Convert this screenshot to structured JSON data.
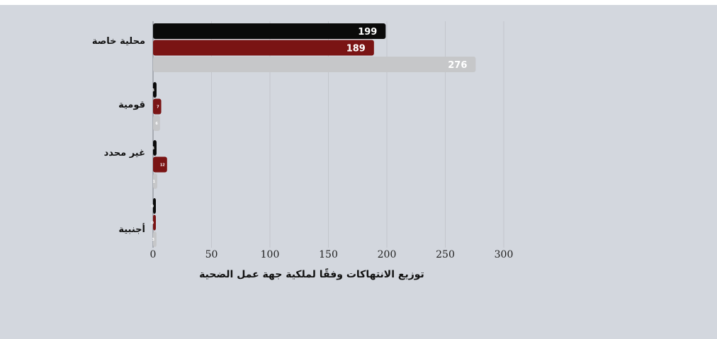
{
  "chart_data": {
    "type": "bar",
    "orientation": "horizontal",
    "categories": [
      "محلية خاصة",
      "قومية",
      "غير محدد",
      "أجنبية"
    ],
    "series": [
      {
        "values": [
          199,
          3,
          3,
          0
        ],
        "color": "#0a0a0a"
      },
      {
        "values": [
          189,
          7,
          12,
          0
        ],
        "color": "#7a1414"
      },
      {
        "values": [
          276,
          6,
          1,
          3
        ],
        "color": "#c6c7c9"
      }
    ],
    "xlim": [
      0,
      300
    ],
    "xticks": [
      "0",
      "50",
      "100",
      "150",
      "200",
      "250",
      "300"
    ],
    "xlabel": "توزيع الانتهاكات وفقًا لملكية جهة عمل الضحية",
    "ylabel": "",
    "grid": true,
    "legend": "none"
  }
}
